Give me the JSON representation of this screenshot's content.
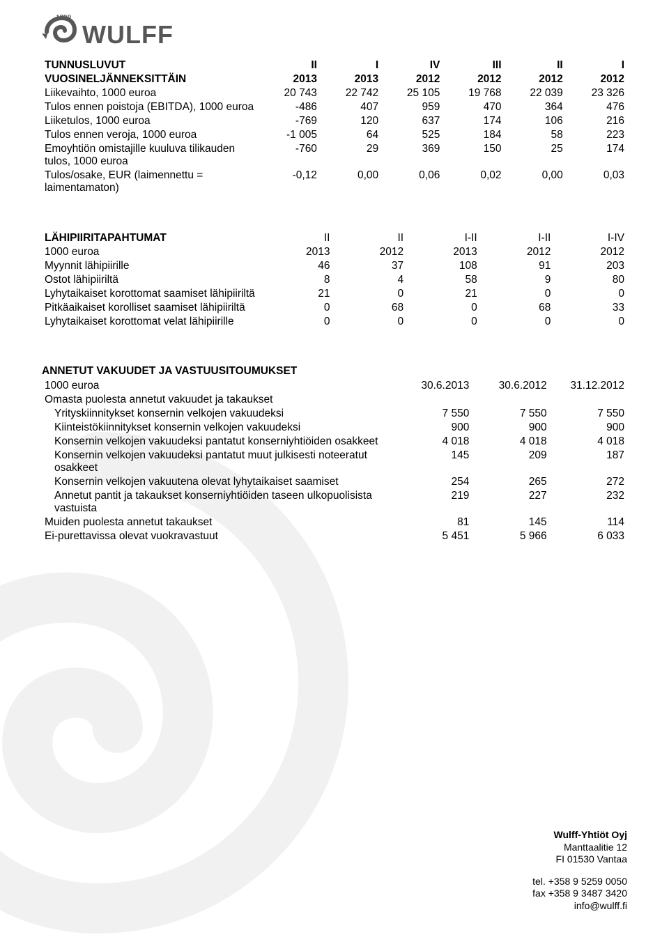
{
  "logo": {
    "year": "1890"
  },
  "table1": {
    "head1": [
      "TUNNUSLUVUT",
      "II",
      "I",
      "IV",
      "III",
      "II",
      "I"
    ],
    "head2": [
      "VUOSINELJÄNNEKSITTÄIN",
      "2013",
      "2013",
      "2012",
      "2012",
      "2012",
      "2012"
    ],
    "rows": [
      {
        "label": "Liikevaihto, 1000 euroa",
        "v": [
          "20 743",
          "22 742",
          "25 105",
          "19 768",
          "22 039",
          "23 326"
        ]
      },
      {
        "label": "Tulos ennen poistoja (EBITDA), 1000 euroa",
        "v": [
          "-486",
          "407",
          "959",
          "470",
          "364",
          "476"
        ]
      },
      {
        "label": "Liiketulos, 1000 euroa",
        "v": [
          "-769",
          "120",
          "637",
          "174",
          "106",
          "216"
        ]
      },
      {
        "label": "Tulos ennen veroja, 1000 euroa",
        "v": [
          "-1 005",
          "64",
          "525",
          "184",
          "58",
          "223"
        ]
      },
      {
        "label": "Emoyhtiön omistajille kuuluva tilikauden tulos, 1000 euroa",
        "v": [
          "-760",
          "29",
          "369",
          "150",
          "25",
          "174"
        ]
      },
      {
        "label": "Tulos/osake, EUR (laimennettu = laimentamaton)",
        "v": [
          "-0,12",
          "0,00",
          "0,06",
          "0,02",
          "0,00",
          "0,03"
        ]
      }
    ]
  },
  "table2": {
    "head1": [
      "LÄHIPIIRITAPAHTUMAT",
      "II",
      "II",
      "I-II",
      "I-II",
      "I-IV"
    ],
    "head2": [
      "1000 euroa",
      "2013",
      "2012",
      "2013",
      "2012",
      "2012"
    ],
    "rows": [
      {
        "label": "Myynnit lähipiirille",
        "v": [
          "46",
          "37",
          "108",
          "91",
          "203"
        ]
      },
      {
        "label": "Ostot lähipiiriltä",
        "v": [
          "8",
          "4",
          "58",
          "9",
          "80"
        ]
      },
      {
        "label": "Lyhytaikaiset korottomat saamiset lähipiiriltä",
        "v": [
          "21",
          "0",
          "21",
          "0",
          "0"
        ]
      },
      {
        "label": "Pitkäaikaiset korolliset saamiset lähipiiriltä",
        "v": [
          "0",
          "68",
          "0",
          "68",
          "33"
        ]
      },
      {
        "label": "Lyhytaikaiset korottomat velat lähipiirille",
        "v": [
          "0",
          "0",
          "0",
          "0",
          "0"
        ]
      }
    ]
  },
  "table3": {
    "head1": "ANNETUT VAKUUDET JA VASTUUSITOUMUKSET",
    "head2": [
      "1000 euroa",
      "30.6.2013",
      "30.6.2012",
      "31.12.2012"
    ],
    "grouphead": "Omasta puolesta annetut vakuudet ja takaukset",
    "rows": [
      {
        "label": "Yrityskiinnitykset konsernin velkojen vakuudeksi",
        "v": [
          "7 550",
          "7 550",
          "7 550"
        ],
        "indent": true
      },
      {
        "label": "Kiinteistökiinnitykset konsernin velkojen vakuudeksi",
        "v": [
          "900",
          "900",
          "900"
        ],
        "indent": true
      },
      {
        "label": "Konsernin velkojen vakuudeksi pantatut konserniyhtiöiden osakkeet",
        "v": [
          "4 018",
          "4 018",
          "4 018"
        ],
        "indent": true
      },
      {
        "label": "Konsernin velkojen vakuudeksi pantatut muut julkisesti noteeratut osakkeet",
        "v": [
          "145",
          "209",
          "187"
        ],
        "indent": true
      },
      {
        "label": "Konsernin velkojen vakuutena olevat lyhytaikaiset saamiset",
        "v": [
          "254",
          "265",
          "272"
        ],
        "indent": true
      },
      {
        "label": "Annetut pantit ja takaukset konserniyhtiöiden taseen ulkopuolisista vastuista",
        "v": [
          "219",
          "227",
          "232"
        ],
        "indent": true
      },
      {
        "label": "Muiden puolesta annetut takaukset",
        "v": [
          "81",
          "145",
          "114"
        ],
        "indent": false
      },
      {
        "label": "Ei-purettavissa olevat vuokravastuut",
        "v": [
          "5 451",
          "5 966",
          "6 033"
        ],
        "indent": false
      }
    ]
  },
  "footer": {
    "company": "Wulff-Yhtiöt Oyj",
    "addr1": "Manttaalitie 12",
    "addr2": "FI 01530 Vantaa",
    "tel": "tel. +358 9 5259 0050",
    "fax": "fax +358 9 3487 3420",
    "email": "info@wulff.fi"
  }
}
